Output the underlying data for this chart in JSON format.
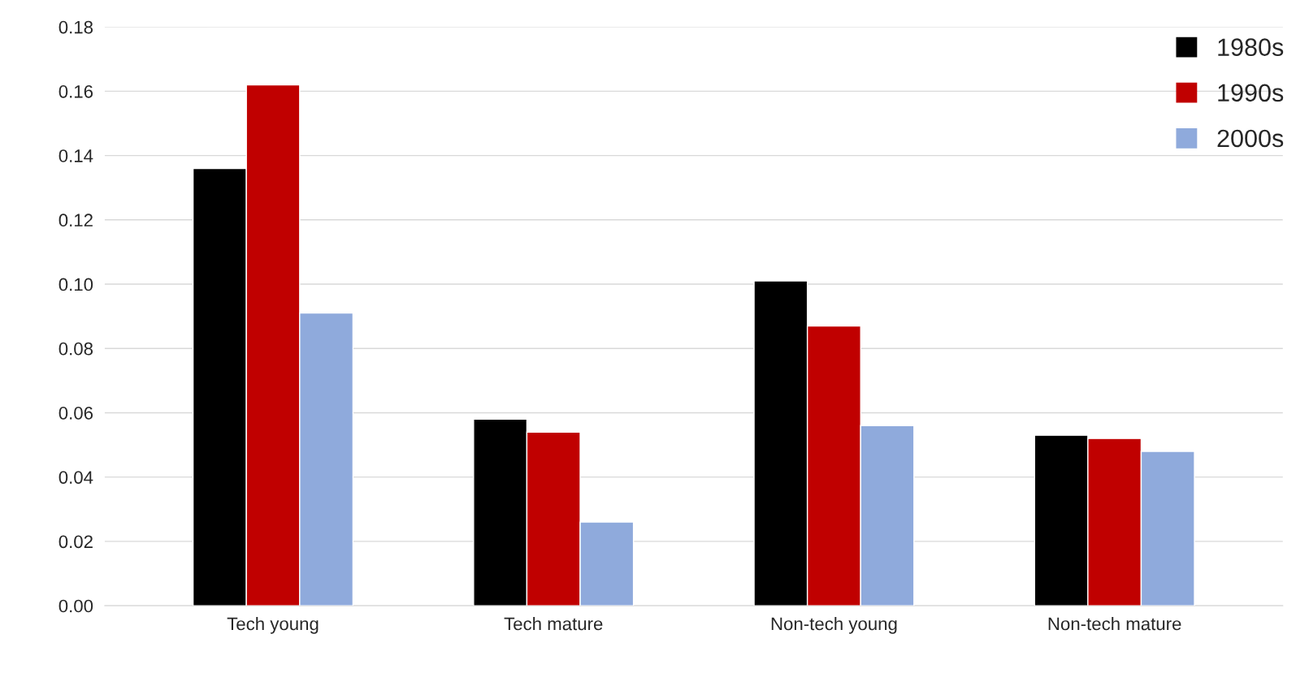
{
  "chart_data": {
    "type": "bar",
    "categories": [
      "Tech young",
      "Tech mature",
      "Non-tech young",
      "Non-tech mature"
    ],
    "series": [
      {
        "name": "1980s",
        "color": "#000000",
        "values": [
          0.136,
          0.058,
          0.101,
          0.053
        ]
      },
      {
        "name": "1990s",
        "color": "#c00000",
        "values": [
          0.162,
          0.054,
          0.087,
          0.052
        ]
      },
      {
        "name": "2000s",
        "color": "#8faadc",
        "values": [
          0.091,
          0.026,
          0.056,
          0.048
        ]
      }
    ],
    "ylim": [
      0,
      0.18
    ],
    "yticks": [
      {
        "value": 0,
        "label": "0.00"
      },
      {
        "value": 0.02,
        "label": "0.02"
      },
      {
        "value": 0.04,
        "label": "0.04"
      },
      {
        "value": 0.06,
        "label": "0.06"
      },
      {
        "value": 0.08,
        "label": "0.08"
      },
      {
        "value": 0.1,
        "label": "0.10"
      },
      {
        "value": 0.12,
        "label": "0.12"
      },
      {
        "value": 0.14,
        "label": "0.14"
      },
      {
        "value": 0.16,
        "label": "0.16"
      },
      {
        "value": 0.18,
        "label": "0.18"
      }
    ],
    "grid": "y",
    "legend": "top right"
  }
}
